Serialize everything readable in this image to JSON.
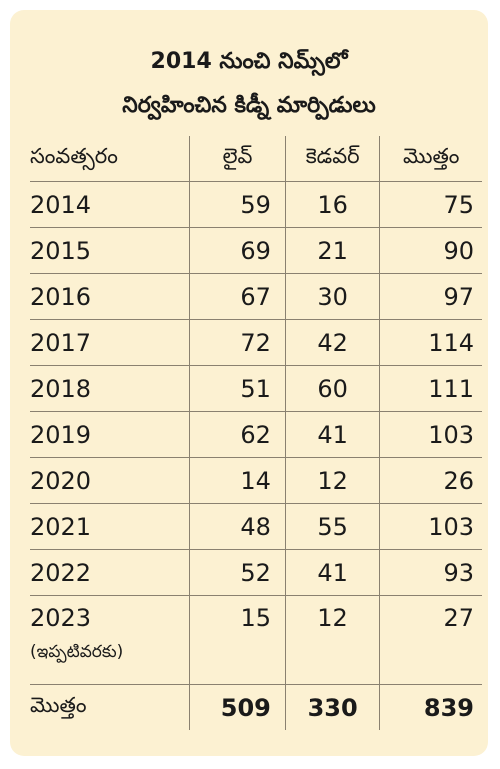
{
  "title": {
    "line1": "2014 నుంచి నిమ్స్‌లో",
    "line2": "నిర్వహించిన కిడ్నీ మార్పిడులు"
  },
  "table": {
    "headers": [
      "సంవత్సరం",
      "లైవ్",
      "కెడవర్",
      "మొత్తం"
    ],
    "rows": [
      {
        "year": "2014",
        "live": "59",
        "cadaver": "16",
        "total": "75"
      },
      {
        "year": "2015",
        "live": "69",
        "cadaver": "21",
        "total": "90"
      },
      {
        "year": "2016",
        "live": "67",
        "cadaver": "30",
        "total": "97"
      },
      {
        "year": "2017",
        "live": "72",
        "cadaver": "42",
        "total": "114"
      },
      {
        "year": "2018",
        "live": "51",
        "cadaver": "60",
        "total": "111"
      },
      {
        "year": "2019",
        "live": "62",
        "cadaver": "41",
        "total": "103"
      },
      {
        "year": "2020",
        "live": "14",
        "cadaver": "12",
        "total": "26"
      },
      {
        "year": "2021",
        "live": "48",
        "cadaver": "55",
        "total": "103"
      },
      {
        "year": "2022",
        "live": "52",
        "cadaver": "41",
        "total": "93"
      },
      {
        "year": "2023",
        "note": "(ఇప్పటివరకు)",
        "live": "15",
        "cadaver": "12",
        "total": "27"
      }
    ],
    "totals": {
      "label": "మొత్తం",
      "live": "509",
      "cadaver": "330",
      "total": "839"
    }
  }
}
